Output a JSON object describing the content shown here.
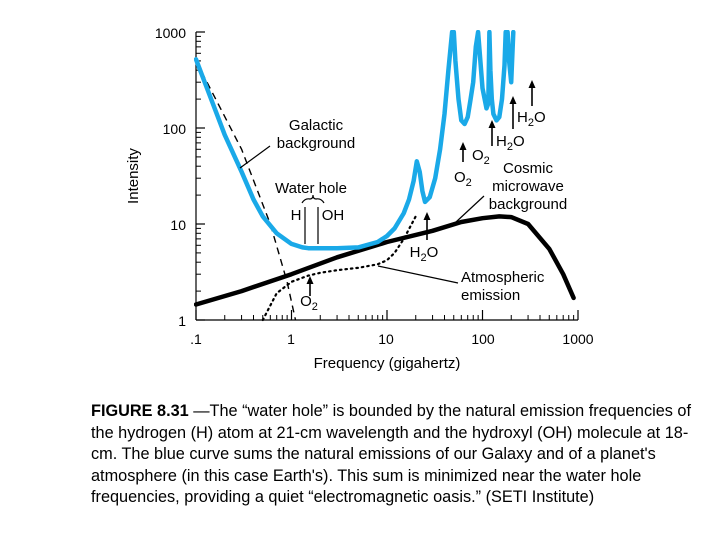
{
  "chart_data": {
    "type": "line",
    "xlabel": "Frequency (gigahertz)",
    "ylabel": "Intensity",
    "xscale": "log",
    "yscale": "log",
    "xlim": [
      0.1,
      1000
    ],
    "ylim": [
      1,
      1000
    ],
    "xticklabels": [
      ".1",
      "1",
      "10",
      "100",
      "1000"
    ],
    "yticklabels": [
      "1",
      "10",
      "100",
      "1000"
    ],
    "colors": {
      "total": "#1aa9e8",
      "cmb": "#000000",
      "galactic": "#000000",
      "atmospheric": "#000000"
    },
    "series": [
      {
        "key": "total",
        "style": "solid-thick-blue",
        "x": [
          0.1,
          0.15,
          0.2,
          0.3,
          0.4,
          0.5,
          0.7,
          1.0,
          1.3,
          1.5,
          2.0,
          3.0,
          5.0,
          8.0,
          10.0,
          12.0,
          15.0,
          17.0,
          19.0,
          20.5,
          22.0,
          23.5,
          25.0,
          28.0,
          32.0,
          36.0,
          40.0,
          44.0,
          48.0,
          50.0,
          52.0,
          56.0,
          60.0,
          65.0,
          70.0,
          75.0,
          80.0,
          85.0,
          90.0,
          100.0,
          110.0,
          115.0,
          118.0,
          121.0,
          125.0,
          130.0,
          140.0,
          150.0,
          160.0,
          170.0,
          175.0,
          178.0,
          183.0,
          190.0,
          200.0,
          210.0
        ],
        "y": [
          520,
          180,
          85,
          35,
          18,
          12,
          8,
          6.2,
          5.7,
          5.6,
          5.6,
          5.6,
          5.7,
          6.5,
          7.5,
          9,
          13,
          18,
          28,
          45,
          35,
          22,
          17,
          19,
          30,
          60,
          140,
          400,
          1000,
          1000,
          500,
          200,
          120,
          110,
          130,
          200,
          300,
          700,
          1000,
          260,
          160,
          180,
          1000,
          400,
          200,
          140,
          120,
          130,
          200,
          450,
          1000,
          1000,
          1000,
          500,
          300,
          1000
        ]
      },
      {
        "key": "cmb",
        "style": "solid-thick-black",
        "x": [
          0.1,
          0.3,
          1,
          3,
          10,
          30,
          60,
          100,
          150,
          200,
          300,
          500,
          700,
          900
        ],
        "y": [
          1.45,
          2.0,
          3.0,
          4.5,
          6.5,
          8.5,
          10.5,
          11.5,
          12,
          11.8,
          10,
          5.5,
          3,
          1.7
        ]
      },
      {
        "key": "galactic",
        "style": "dashed",
        "x": [
          0.1,
          0.3,
          0.6,
          0.9,
          1.1
        ],
        "y": [
          500,
          60,
          10,
          2.5,
          1
        ]
      },
      {
        "key": "atmospheric",
        "style": "dotted",
        "x": [
          0.5,
          0.7,
          1,
          1.5,
          2,
          3,
          5,
          8,
          10,
          12,
          15,
          20
        ],
        "y": [
          1,
          1.9,
          2.5,
          2.9,
          3.1,
          3.3,
          3.5,
          3.8,
          4.2,
          5,
          7,
          12
        ]
      }
    ],
    "labels": {
      "galactic_1": "Galactic",
      "galactic_2": "background",
      "water_hole": "Water hole",
      "h": "H",
      "oh": "OH",
      "h2o_low": "H",
      "o2_low": "O",
      "atm_1": "Atmospheric",
      "atm_2": "emission",
      "cosmic_1": "Cosmic",
      "cosmic_2": "microwave",
      "cosmic_3": "background",
      "o2_a": "O",
      "o2_b": "O",
      "h2o_a": "H",
      "h2o_b": "H",
      "o": "O",
      "sub2": "2"
    }
  },
  "caption": {
    "label": "FIGURE 8.31",
    "text": " —The “water hole” is bounded by the natural emission frequencies of the hydrogen (H) atom at 21-cm wavelength and the hydroxyl (OH) molecule at 18-cm. The blue curve sums the natural emissions of our Galaxy and of a planet's atmosphere (in this case Earth's). This sum is minimized near the water hole frequencies, providing a quiet “electromagnetic oasis.” (SETI Institute)"
  }
}
